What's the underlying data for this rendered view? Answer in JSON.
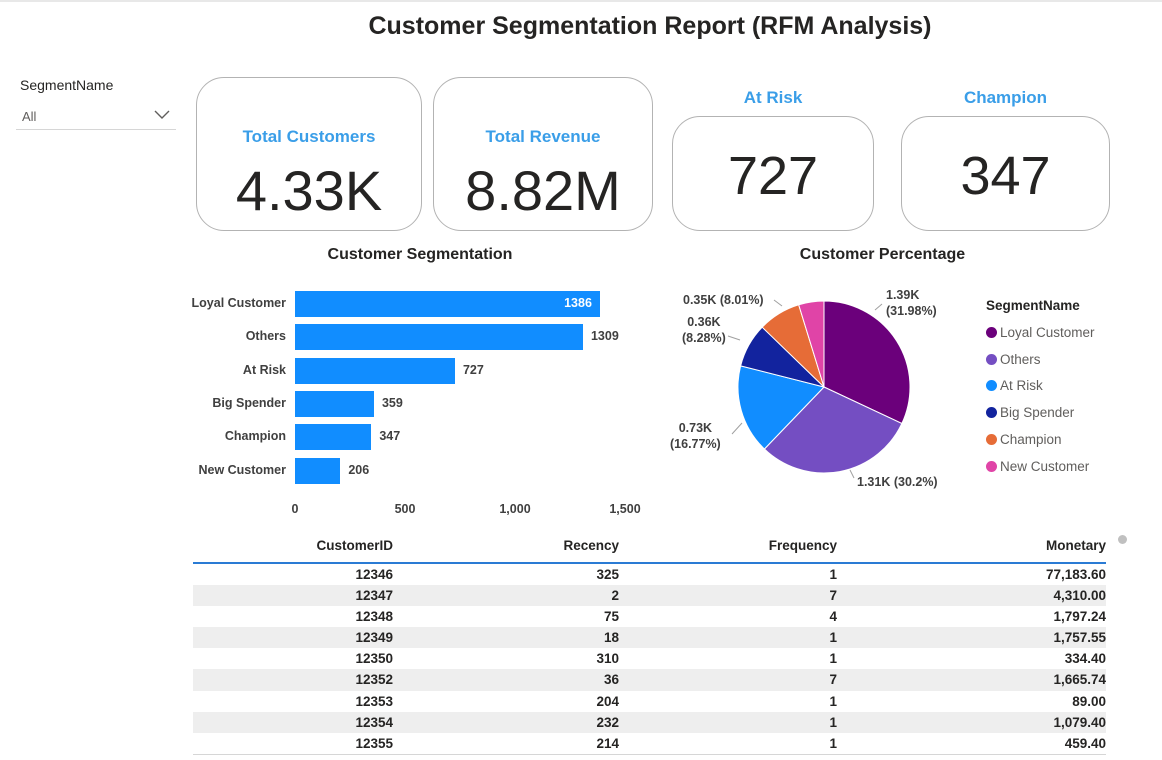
{
  "title": "Customer Segmentation Report (RFM Analysis)",
  "slicer": {
    "label": "SegmentName",
    "value": "All"
  },
  "cards": {
    "total_customers": {
      "label": "Total Customers",
      "value": "4.33K"
    },
    "total_revenue": {
      "label": "Total Revenue",
      "value": "8.82M"
    },
    "at_risk": {
      "label": "At Risk",
      "value": "727"
    },
    "champion": {
      "label": "Champion",
      "value": "347"
    }
  },
  "chart_data": [
    {
      "type": "bar",
      "orientation": "horizontal",
      "title": "Customer Segmentation",
      "categories": [
        "Loyal Customer",
        "Others",
        "At Risk",
        "Big Spender",
        "Champion",
        "New Customer"
      ],
      "values": [
        1386,
        1309,
        727,
        359,
        347,
        206
      ],
      "value_labels": [
        "1386",
        "1309",
        "727",
        "359",
        "347",
        "206"
      ],
      "xticks": [
        "0",
        "500",
        "1,000",
        "1,500"
      ],
      "xlim": [
        0,
        1500
      ],
      "color": "#118dff"
    },
    {
      "type": "pie",
      "title": "Customer Percentage",
      "legend_title": "SegmentName",
      "legend_position": "right",
      "slices": [
        {
          "name": "Loyal Customer",
          "value": 1386,
          "label_value": "1.39K",
          "label_pct": "(31.98%)",
          "color": "#6b007b"
        },
        {
          "name": "Others",
          "value": 1309,
          "label_value": "1.31K (30.2%)",
          "label_pct": "",
          "color": "#744ec2"
        },
        {
          "name": "At Risk",
          "value": 727,
          "label_value": "0.73K",
          "label_pct": "(16.77%)",
          "color": "#118dff"
        },
        {
          "name": "Big Spender",
          "value": 359,
          "label_value": "0.36K",
          "label_pct": "(8.28%)",
          "color": "#12239e"
        },
        {
          "name": "Champion",
          "value": 347,
          "label_value": "0.35K (8.01%)",
          "label_pct": "",
          "color": "#e66c37"
        },
        {
          "name": "New Customer",
          "value": 206,
          "label_value": "",
          "label_pct": "",
          "color": "#e044a7"
        }
      ]
    }
  ],
  "table": {
    "columns": [
      "CustomerID",
      "Recency",
      "Frequency",
      "Monetary"
    ],
    "rows": [
      [
        "12346",
        "325",
        "1",
        "77,183.60"
      ],
      [
        "12347",
        "2",
        "7",
        "4,310.00"
      ],
      [
        "12348",
        "75",
        "4",
        "1,797.24"
      ],
      [
        "12349",
        "18",
        "1",
        "1,757.55"
      ],
      [
        "12350",
        "310",
        "1",
        "334.40"
      ],
      [
        "12352",
        "36",
        "7",
        "1,665.74"
      ],
      [
        "12353",
        "204",
        "1",
        "89.00"
      ],
      [
        "12354",
        "232",
        "1",
        "1,079.40"
      ],
      [
        "12355",
        "214",
        "1",
        "459.40"
      ]
    ]
  }
}
